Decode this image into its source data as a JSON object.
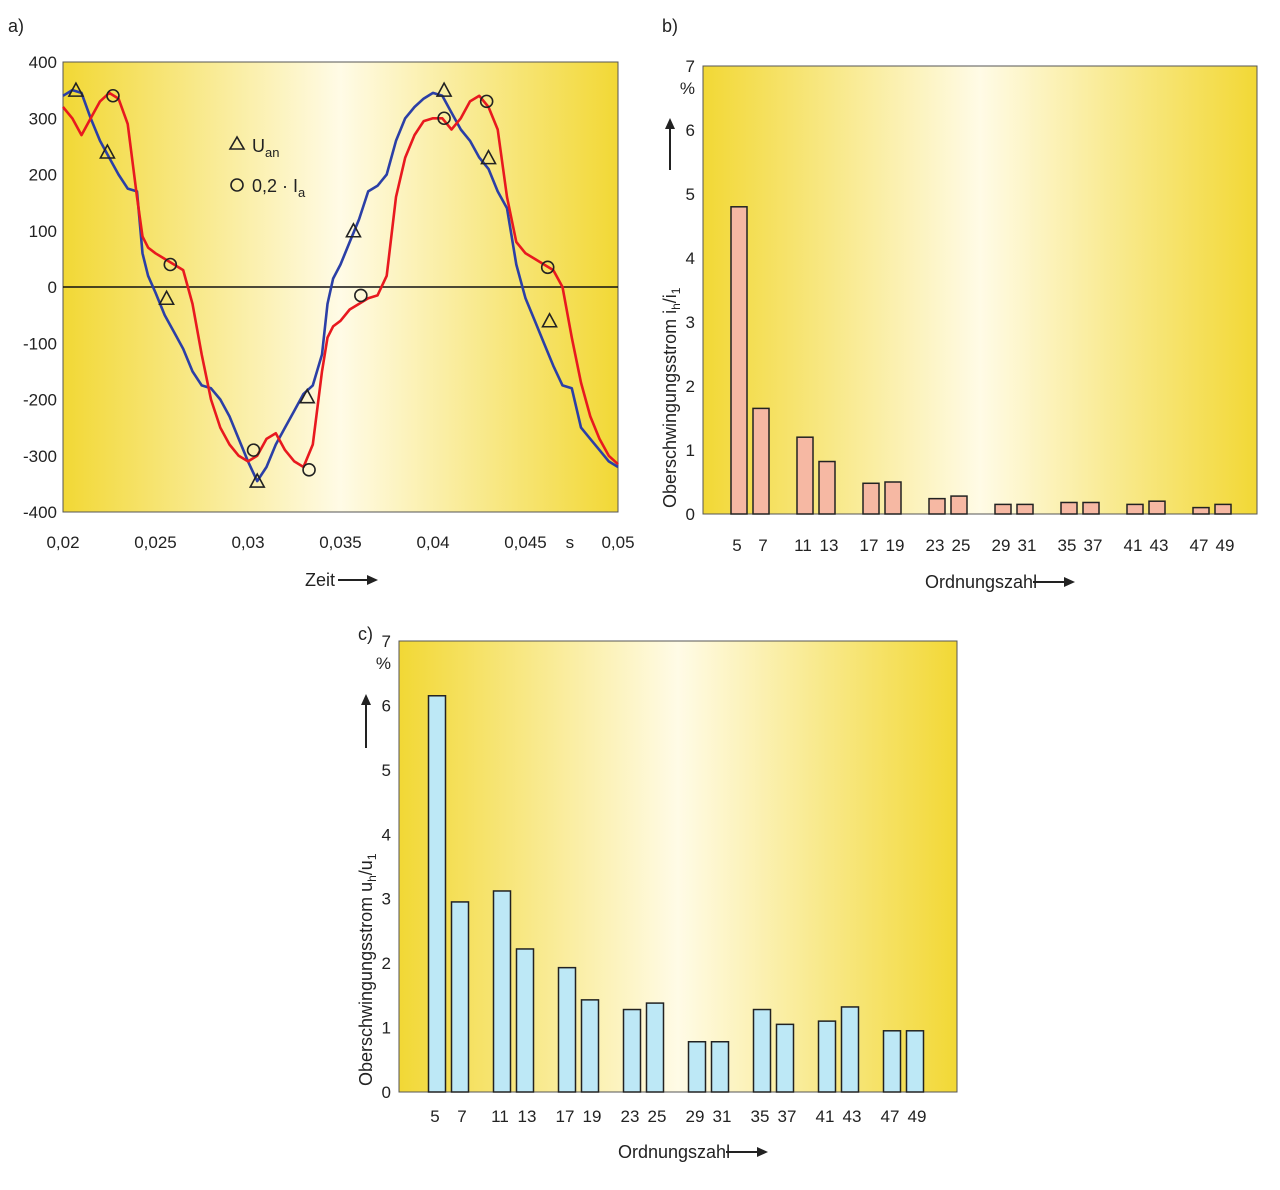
{
  "colors": {
    "voltage": "#2b3fa6",
    "current": "#e8191f",
    "bar_b": "#f6b8a3",
    "bar_c": "#bde8f6",
    "bg_edge": "#f2d835",
    "bg_center": "#fffbe6"
  },
  "chart_data": [
    {
      "panel": "a)",
      "type": "line",
      "xlabel": "Zeit",
      "x_unit": "s",
      "xlim": [
        0.02,
        0.05
      ],
      "ylim": [
        -400,
        400
      ],
      "x_tick_labels": [
        "0,02",
        "0,025",
        "0,03",
        "0,035",
        "0,04",
        "0,045",
        "0,05"
      ],
      "y_tick_labels": [
        "400",
        "300",
        "200",
        "100",
        "0",
        "-100",
        "-200",
        "-300",
        "-400"
      ],
      "legend_placement": "upper-middle",
      "series": [
        {
          "name": "U",
          "name_subscript": "an",
          "marker": "triangle",
          "color_key": "voltage",
          "x": [
            0.02,
            0.0205,
            0.021,
            0.0215,
            0.022,
            0.0225,
            0.023,
            0.0235,
            0.024,
            0.0243,
            0.0246,
            0.025,
            0.0255,
            0.026,
            0.0265,
            0.027,
            0.0275,
            0.028,
            0.0285,
            0.029,
            0.0295,
            0.03,
            0.0305,
            0.031,
            0.0315,
            0.032,
            0.0325,
            0.033,
            0.0335,
            0.034,
            0.0343,
            0.0346,
            0.035,
            0.0355,
            0.036,
            0.0365,
            0.037,
            0.0375,
            0.038,
            0.0385,
            0.039,
            0.0395,
            0.04,
            0.0405,
            0.041,
            0.0415,
            0.042,
            0.0425,
            0.043,
            0.0435,
            0.044,
            0.0445,
            0.045,
            0.0455,
            0.046,
            0.0465,
            0.047,
            0.0475,
            0.048,
            0.0485,
            0.049,
            0.0495,
            0.05
          ],
          "y": [
            340,
            350,
            345,
            300,
            260,
            230,
            200,
            175,
            170,
            60,
            20,
            -10,
            -50,
            -80,
            -110,
            -150,
            -175,
            -180,
            -200,
            -230,
            -270,
            -310,
            -345,
            -320,
            -280,
            -250,
            -220,
            -190,
            -175,
            -120,
            -30,
            15,
            40,
            80,
            120,
            170,
            180,
            200,
            260,
            300,
            320,
            335,
            345,
            340,
            310,
            280,
            260,
            230,
            210,
            170,
            140,
            40,
            -20,
            -60,
            -100,
            -140,
            -175,
            -180,
            -250,
            -270,
            -290,
            -310,
            -320
          ]
        },
        {
          "name": "0,2 · I",
          "name_subscript": "a",
          "marker": "circle",
          "color_key": "current",
          "x": [
            0.02,
            0.0205,
            0.021,
            0.0215,
            0.022,
            0.0225,
            0.023,
            0.0235,
            0.024,
            0.0243,
            0.0246,
            0.025,
            0.0255,
            0.026,
            0.0265,
            0.027,
            0.0275,
            0.028,
            0.0285,
            0.029,
            0.0295,
            0.03,
            0.0305,
            0.031,
            0.0315,
            0.032,
            0.0325,
            0.033,
            0.0335,
            0.034,
            0.0343,
            0.0346,
            0.035,
            0.0355,
            0.036,
            0.0365,
            0.037,
            0.0375,
            0.038,
            0.0385,
            0.039,
            0.0395,
            0.04,
            0.0405,
            0.041,
            0.0415,
            0.042,
            0.0425,
            0.043,
            0.0435,
            0.044,
            0.0445,
            0.045,
            0.0455,
            0.046,
            0.0465,
            0.047,
            0.0475,
            0.048,
            0.0485,
            0.049,
            0.0495,
            0.05
          ],
          "y": [
            320,
            300,
            270,
            300,
            330,
            345,
            335,
            290,
            160,
            90,
            70,
            60,
            50,
            40,
            30,
            -30,
            -120,
            -200,
            -250,
            -280,
            -300,
            -310,
            -300,
            -270,
            -260,
            -290,
            -310,
            -320,
            -280,
            -150,
            -90,
            -70,
            -60,
            -40,
            -30,
            -20,
            -15,
            20,
            160,
            230,
            270,
            295,
            300,
            300,
            280,
            300,
            330,
            340,
            320,
            280,
            160,
            80,
            60,
            50,
            40,
            30,
            0,
            -90,
            -170,
            -230,
            -270,
            -300,
            -315
          ]
        }
      ],
      "markers": {
        "triangle": [
          [
            0.0207,
            350
          ],
          [
            0.0224,
            240
          ],
          [
            0.0256,
            -20
          ],
          [
            0.0305,
            -345
          ],
          [
            0.0332,
            -195
          ],
          [
            0.0357,
            100
          ],
          [
            0.0406,
            350
          ],
          [
            0.043,
            230
          ],
          [
            0.0463,
            -60
          ]
        ],
        "circle": [
          [
            0.0227,
            340
          ],
          [
            0.0258,
            40
          ],
          [
            0.0303,
            -290
          ],
          [
            0.0333,
            -325
          ],
          [
            0.0361,
            -15
          ],
          [
            0.0406,
            300
          ],
          [
            0.0429,
            330
          ],
          [
            0.0462,
            35
          ]
        ]
      }
    },
    {
      "panel": "b)",
      "type": "bar",
      "ylabel": "Oberschwingungsstrom",
      "ylabel_symbol": "i",
      "ylabel_sub_num": "h",
      "ylabel_den": "i",
      "ylabel_sub_den": "1",
      "y_unit": "%",
      "xlabel": "Ordnungszahl",
      "ylim": [
        0,
        7
      ],
      "y_tick_labels": [
        "0",
        "1",
        "2",
        "3",
        "4",
        "5",
        "6",
        "7"
      ],
      "categories": [
        "5",
        "7",
        "11",
        "13",
        "17",
        "19",
        "23",
        "25",
        "29",
        "31",
        "35",
        "37",
        "41",
        "43",
        "47",
        "49"
      ],
      "values": [
        4.8,
        1.65,
        1.2,
        0.82,
        0.48,
        0.5,
        0.24,
        0.28,
        0.15,
        0.15,
        0.18,
        0.18,
        0.15,
        0.2,
        0.1,
        0.15
      ],
      "bar_color_key": "bar_b"
    },
    {
      "panel": "c)",
      "type": "bar",
      "ylabel": "Oberschwingungsstrom",
      "ylabel_symbol": "u",
      "ylabel_sub_num": "h",
      "ylabel_den": "u",
      "ylabel_sub_den": "1",
      "y_unit": "%",
      "xlabel": "Ordnungszahl",
      "ylim": [
        0,
        7
      ],
      "y_tick_labels": [
        "0",
        "1",
        "2",
        "3",
        "4",
        "5",
        "6",
        "7"
      ],
      "categories": [
        "5",
        "7",
        "11",
        "13",
        "17",
        "19",
        "23",
        "25",
        "29",
        "31",
        "35",
        "37",
        "41",
        "43",
        "47",
        "49"
      ],
      "values": [
        6.15,
        2.95,
        3.12,
        2.22,
        1.93,
        1.43,
        1.28,
        1.38,
        0.78,
        0.78,
        1.28,
        1.05,
        1.1,
        1.32,
        0.95,
        0.95
      ],
      "bar_color_key": "bar_c"
    }
  ]
}
